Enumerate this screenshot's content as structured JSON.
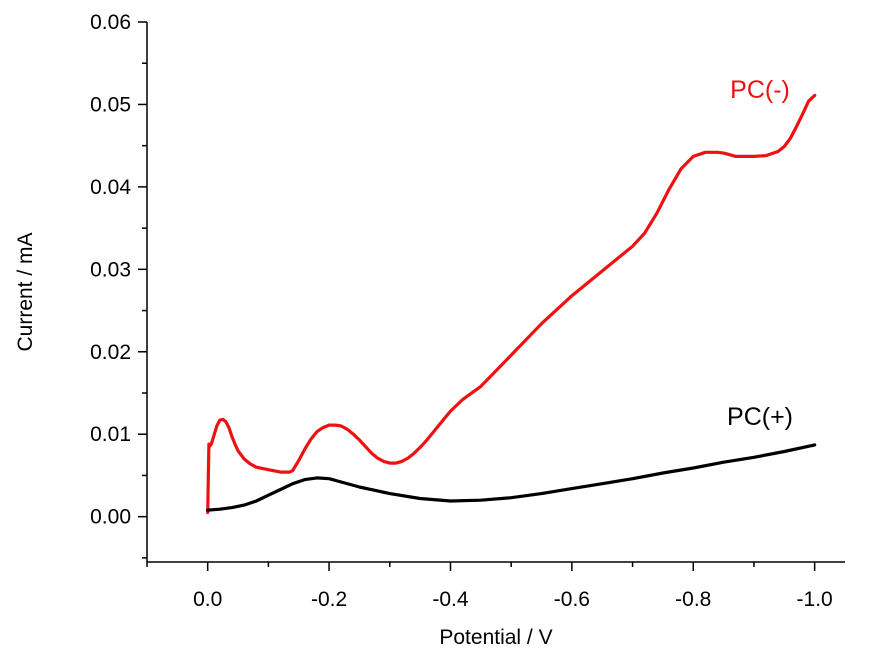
{
  "chart_data": {
    "type": "line",
    "title": "",
    "xlabel": "Potential / V",
    "ylabel": "Current / mA",
    "xlim": [
      0.1,
      -1.05
    ],
    "ylim": [
      -0.0055,
      0.06
    ],
    "x_ticks": [
      0.0,
      -0.2,
      -0.4,
      -0.6,
      -0.8,
      -1.0
    ],
    "x_tick_labels": [
      "0.0",
      "-0.2",
      "-0.4",
      "-0.6",
      "-0.8",
      "-1.0"
    ],
    "y_ticks": [
      0.0,
      0.01,
      0.02,
      0.03,
      0.04,
      0.05,
      0.06
    ],
    "y_tick_labels": [
      "0.00",
      "0.01",
      "0.02",
      "0.03",
      "0.04",
      "0.05",
      "0.06"
    ],
    "grid": false,
    "legend": "none",
    "series": [
      {
        "name": "PC(-)",
        "color": "#ee1111",
        "x": [
          0.0,
          -0.002,
          -0.003,
          -0.006,
          -0.01,
          -0.015,
          -0.02,
          -0.025,
          -0.03,
          -0.035,
          -0.04,
          -0.045,
          -0.05,
          -0.06,
          -0.07,
          -0.08,
          -0.1,
          -0.12,
          -0.135,
          -0.14,
          -0.15,
          -0.16,
          -0.17,
          -0.18,
          -0.19,
          -0.2,
          -0.21,
          -0.22,
          -0.23,
          -0.24,
          -0.25,
          -0.26,
          -0.27,
          -0.28,
          -0.29,
          -0.3,
          -0.31,
          -0.32,
          -0.33,
          -0.34,
          -0.35,
          -0.36,
          -0.37,
          -0.38,
          -0.39,
          -0.4,
          -0.42,
          -0.45,
          -0.5,
          -0.55,
          -0.6,
          -0.65,
          -0.7,
          -0.72,
          -0.74,
          -0.76,
          -0.78,
          -0.8,
          -0.82,
          -0.84,
          -0.85,
          -0.86,
          -0.87,
          -0.88,
          -0.9,
          -0.92,
          -0.94,
          -0.95,
          -0.96,
          -0.97,
          -0.98,
          -0.99,
          -1.0
        ],
        "y": [
          0.0005,
          0.0088,
          0.0085,
          0.0088,
          0.0098,
          0.011,
          0.0117,
          0.0118,
          0.0115,
          0.0108,
          0.0097,
          0.0088,
          0.008,
          0.007,
          0.0064,
          0.006,
          0.0057,
          0.0054,
          0.0054,
          0.0056,
          0.0068,
          0.0082,
          0.0094,
          0.0103,
          0.0108,
          0.0111,
          0.0111,
          0.011,
          0.0106,
          0.01,
          0.0093,
          0.0085,
          0.0077,
          0.0071,
          0.0067,
          0.0065,
          0.0065,
          0.0067,
          0.0071,
          0.0077,
          0.0084,
          0.0092,
          0.0101,
          0.011,
          0.0119,
          0.0128,
          0.0142,
          0.0158,
          0.0196,
          0.0234,
          0.0268,
          0.0298,
          0.0328,
          0.0344,
          0.0368,
          0.0397,
          0.0422,
          0.0437,
          0.0442,
          0.0442,
          0.0441,
          0.0439,
          0.0437,
          0.0437,
          0.0437,
          0.0438,
          0.0443,
          0.0449,
          0.0459,
          0.0473,
          0.0488,
          0.0504,
          0.0511
        ]
      },
      {
        "name": "PC(+)",
        "color": "#000000",
        "x": [
          0.0,
          -0.02,
          -0.04,
          -0.06,
          -0.08,
          -0.1,
          -0.12,
          -0.14,
          -0.16,
          -0.18,
          -0.2,
          -0.22,
          -0.25,
          -0.3,
          -0.35,
          -0.4,
          -0.45,
          -0.5,
          -0.55,
          -0.6,
          -0.65,
          -0.7,
          -0.75,
          -0.8,
          -0.85,
          -0.9,
          -0.95,
          -1.0
        ],
        "y": [
          0.0008,
          0.0009,
          0.0011,
          0.0014,
          0.0019,
          0.0026,
          0.0033,
          0.004,
          0.0045,
          0.0047,
          0.0046,
          0.0042,
          0.0036,
          0.0028,
          0.0022,
          0.0019,
          0.002,
          0.0023,
          0.0028,
          0.0034,
          0.004,
          0.0046,
          0.0053,
          0.0059,
          0.0066,
          0.0072,
          0.0079,
          0.0087
        ]
      }
    ],
    "annotations": [
      {
        "text": "PC(-)",
        "x": -0.91,
        "y": 0.0508,
        "color": "#ee1111"
      },
      {
        "text": "PC(+)",
        "x": -0.91,
        "y": 0.0111,
        "color": "#000000"
      }
    ]
  }
}
